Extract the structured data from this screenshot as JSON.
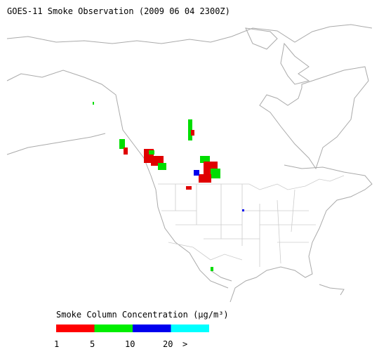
{
  "header": {
    "title": "GOES-11 Smoke Observation (2009 06 04  2300Z)"
  },
  "legend": {
    "title": "Smoke Column Concentration (µg/m³)",
    "labels": [
      "1",
      "5",
      "10",
      "20",
      ">"
    ],
    "colors": [
      "#ff0000",
      "#00ee00",
      "#0000ee",
      "#00ffff"
    ]
  }
}
